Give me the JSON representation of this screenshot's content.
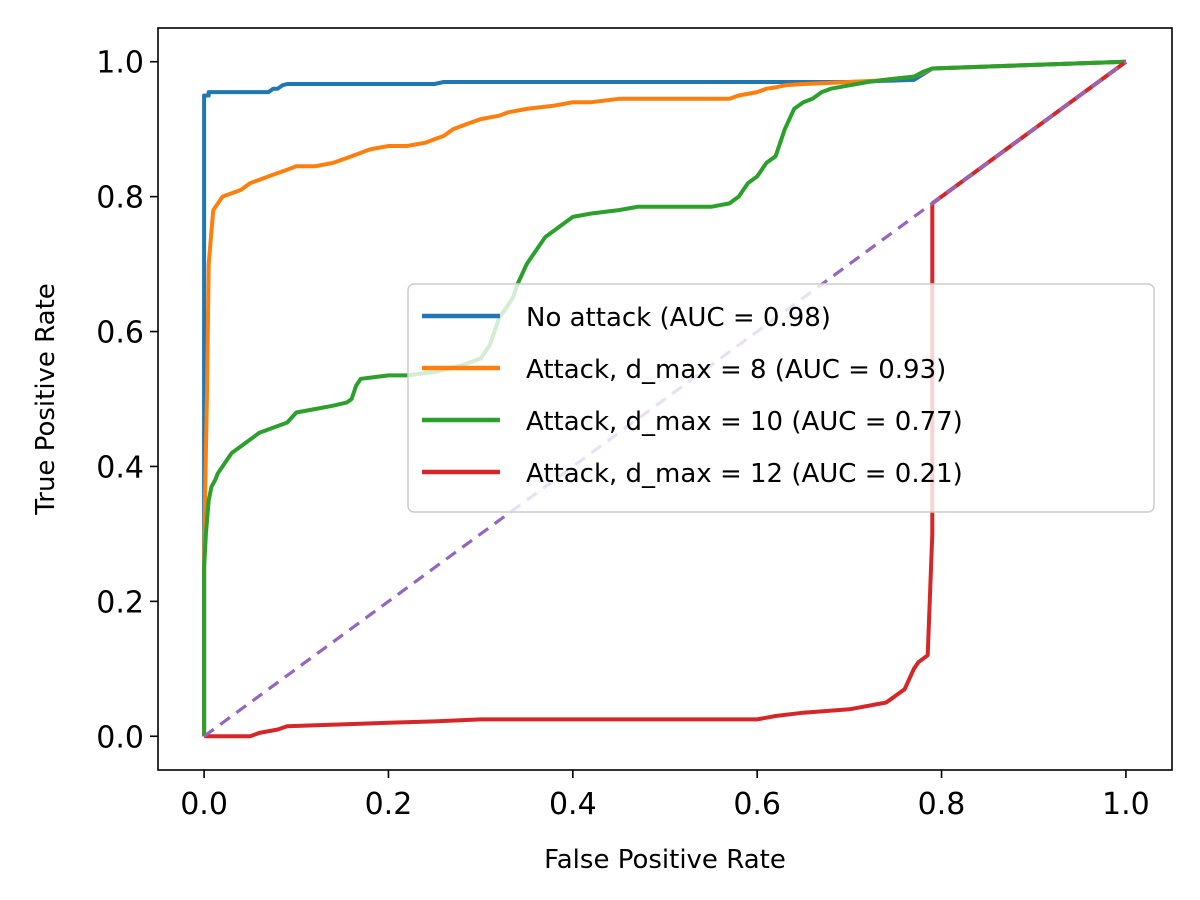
{
  "chart_data": {
    "type": "line",
    "title": "",
    "xlabel": "False Positive Rate",
    "ylabel": "True Positive Rate",
    "xlim": [
      -0.05,
      1.05
    ],
    "ylim": [
      -0.05,
      1.05
    ],
    "xticks": [
      0.0,
      0.2,
      0.4,
      0.6,
      0.8,
      1.0
    ],
    "xtick_labels": [
      "0.0",
      "0.2",
      "0.4",
      "0.6",
      "0.8",
      "1.0"
    ],
    "yticks": [
      0.0,
      0.2,
      0.4,
      0.6,
      0.8,
      1.0
    ],
    "ytick_labels": [
      "0.0",
      "0.2",
      "0.4",
      "0.6",
      "0.8",
      "1.0"
    ],
    "grid": false,
    "legend_position": "center-right",
    "series": [
      {
        "name": "No attack (AUC = 0.98)",
        "color": "#1f77b4",
        "x": [
          0,
          0,
          0.005,
          0.005,
          0.07,
          0.075,
          0.08,
          0.085,
          0.09,
          0.25,
          0.26,
          0.6,
          0.7,
          0.77,
          0.79,
          1.0
        ],
        "y": [
          0,
          0.95,
          0.95,
          0.955,
          0.955,
          0.96,
          0.96,
          0.965,
          0.967,
          0.967,
          0.97,
          0.97,
          0.97,
          0.973,
          0.99,
          1.0
        ]
      },
      {
        "name": "Attack, d_max = 8 (AUC = 0.93)",
        "color": "#ff7f0e",
        "x": [
          0,
          0,
          0.001,
          0.003,
          0.005,
          0.008,
          0.01,
          0.015,
          0.02,
          0.03,
          0.04,
          0.05,
          0.06,
          0.07,
          0.08,
          0.09,
          0.1,
          0.12,
          0.14,
          0.16,
          0.18,
          0.2,
          0.22,
          0.24,
          0.25,
          0.26,
          0.27,
          0.28,
          0.29,
          0.3,
          0.32,
          0.33,
          0.35,
          0.38,
          0.4,
          0.42,
          0.45,
          0.48,
          0.5,
          0.55,
          0.57,
          0.58,
          0.6,
          0.61,
          0.62,
          0.63,
          0.65,
          0.67,
          0.7,
          0.73,
          0.75,
          0.77,
          0.79,
          1.0
        ],
        "y": [
          0,
          0.25,
          0.35,
          0.5,
          0.7,
          0.75,
          0.78,
          0.79,
          0.8,
          0.805,
          0.81,
          0.82,
          0.825,
          0.83,
          0.835,
          0.84,
          0.845,
          0.845,
          0.85,
          0.86,
          0.87,
          0.875,
          0.875,
          0.88,
          0.885,
          0.89,
          0.9,
          0.905,
          0.91,
          0.915,
          0.92,
          0.925,
          0.93,
          0.935,
          0.94,
          0.94,
          0.945,
          0.945,
          0.945,
          0.945,
          0.945,
          0.95,
          0.955,
          0.96,
          0.962,
          0.965,
          0.967,
          0.968,
          0.97,
          0.972,
          0.975,
          0.978,
          0.99,
          1.0
        ]
      },
      {
        "name": "Attack, d_max = 10 (AUC = 0.77)",
        "color": "#2ca02c",
        "x": [
          0,
          0,
          0.002,
          0.005,
          0.008,
          0.012,
          0.015,
          0.02,
          0.025,
          0.03,
          0.04,
          0.05,
          0.06,
          0.07,
          0.08,
          0.09,
          0.1,
          0.12,
          0.14,
          0.155,
          0.16,
          0.165,
          0.17,
          0.2,
          0.22,
          0.25,
          0.28,
          0.3,
          0.31,
          0.32,
          0.33,
          0.335,
          0.34,
          0.35,
          0.36,
          0.37,
          0.38,
          0.39,
          0.4,
          0.42,
          0.45,
          0.47,
          0.5,
          0.55,
          0.57,
          0.58,
          0.59,
          0.6,
          0.61,
          0.62,
          0.63,
          0.64,
          0.65,
          0.66,
          0.67,
          0.68,
          0.7,
          0.72,
          0.75,
          0.77,
          0.78,
          0.79,
          1.0
        ],
        "y": [
          0,
          0.25,
          0.3,
          0.35,
          0.37,
          0.38,
          0.39,
          0.4,
          0.41,
          0.42,
          0.43,
          0.44,
          0.45,
          0.455,
          0.46,
          0.465,
          0.48,
          0.485,
          0.49,
          0.495,
          0.5,
          0.52,
          0.53,
          0.535,
          0.535,
          0.54,
          0.55,
          0.56,
          0.58,
          0.62,
          0.64,
          0.65,
          0.67,
          0.7,
          0.72,
          0.74,
          0.75,
          0.76,
          0.77,
          0.775,
          0.78,
          0.785,
          0.785,
          0.785,
          0.79,
          0.8,
          0.82,
          0.83,
          0.85,
          0.86,
          0.9,
          0.93,
          0.94,
          0.945,
          0.955,
          0.96,
          0.965,
          0.97,
          0.975,
          0.978,
          0.985,
          0.99,
          1.0
        ]
      },
      {
        "name": "Attack, d_max = 12 (AUC = 0.21)",
        "color": "#d62728",
        "x": [
          0,
          0.05,
          0.06,
          0.08,
          0.09,
          0.2,
          0.25,
          0.3,
          0.4,
          0.5,
          0.6,
          0.62,
          0.65,
          0.7,
          0.74,
          0.76,
          0.77,
          0.775,
          0.78,
          0.785,
          0.79,
          0.79,
          0.79,
          1.0
        ],
        "y": [
          0,
          0,
          0.005,
          0.01,
          0.015,
          0.02,
          0.022,
          0.025,
          0.025,
          0.025,
          0.025,
          0.03,
          0.035,
          0.04,
          0.05,
          0.07,
          0.1,
          0.11,
          0.115,
          0.12,
          0.3,
          0.7,
          0.79,
          1.0
        ]
      }
    ],
    "reference_line": {
      "color": "#9467bd",
      "style": "dashed",
      "x": [
        0,
        1
      ],
      "y": [
        0,
        1
      ]
    }
  }
}
